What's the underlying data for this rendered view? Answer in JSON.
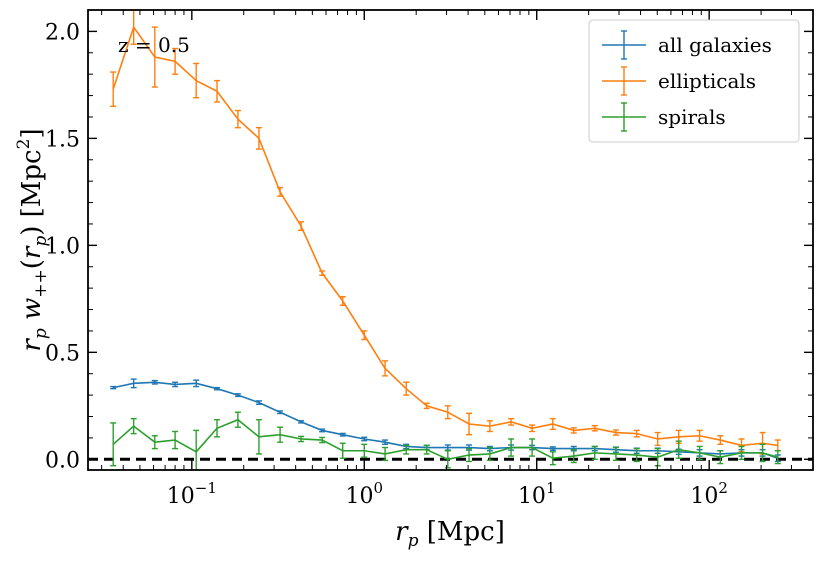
{
  "chart_data": {
    "type": "line",
    "xscale": "log",
    "xlim": [
      0.025,
      400
    ],
    "ylim": [
      -0.05,
      2.1
    ],
    "xlabel": "r_p [Mpc]",
    "ylabel": "r_p w_{++}(r_p) [Mpc^2]",
    "annotation": "z = 0.5",
    "legend_position": "upper right",
    "reference_line": {
      "y": 0,
      "style": "dashed",
      "color": "#000000"
    },
    "y_ticks": [
      {
        "value": 0.0,
        "label": "0.0"
      },
      {
        "value": 0.5,
        "label": "0.5"
      },
      {
        "value": 1.0,
        "label": "1.0"
      },
      {
        "value": 1.5,
        "label": "1.5"
      },
      {
        "value": 2.0,
        "label": "2.0"
      }
    ],
    "x_ticks": [
      {
        "value": 0.1,
        "base": "10",
        "exp": "−1"
      },
      {
        "value": 1,
        "base": "10",
        "exp": "0"
      },
      {
        "value": 10,
        "base": "10",
        "exp": "1"
      },
      {
        "value": 100,
        "base": "10",
        "exp": "2"
      }
    ],
    "x": [
      0.035,
      0.046,
      0.061,
      0.08,
      0.106,
      0.14,
      0.185,
      0.245,
      0.325,
      0.43,
      0.57,
      0.75,
      1.0,
      1.32,
      1.75,
      2.3,
      3.05,
      4.05,
      5.35,
      7.1,
      9.4,
      12.4,
      16.4,
      21.7,
      28.8,
      38.0,
      50.3,
      66.6,
      88.0,
      116.0,
      154.0,
      204.0,
      250.0
    ],
    "series": [
      {
        "name": "all galaxies",
        "color": "#1f77b4",
        "y": [
          0.335,
          0.355,
          0.36,
          0.35,
          0.355,
          0.33,
          0.3,
          0.265,
          0.22,
          0.175,
          0.135,
          0.115,
          0.095,
          0.08,
          0.06,
          0.055,
          0.055,
          0.055,
          0.05,
          0.055,
          0.055,
          0.05,
          0.05,
          0.05,
          0.045,
          0.04,
          0.04,
          0.035,
          0.03,
          0.025,
          0.03,
          0.03,
          0.005
        ],
        "yerr": [
          0.005,
          0.02,
          0.008,
          0.01,
          0.015,
          0.005,
          0.006,
          0.008,
          0.006,
          0.005,
          0.006,
          0.006,
          0.008,
          0.01,
          0.01,
          0.01,
          0.012,
          0.012,
          0.01,
          0.012,
          0.01,
          0.008,
          0.01,
          0.01,
          0.012,
          0.012,
          0.012,
          0.012,
          0.015,
          0.015,
          0.015,
          0.015,
          0.015
        ]
      },
      {
        "name": "ellipticals",
        "color": "#ff7f0e",
        "y": [
          1.73,
          2.02,
          1.88,
          1.86,
          1.77,
          1.72,
          1.59,
          1.5,
          1.25,
          1.09,
          0.87,
          0.74,
          0.58,
          0.425,
          0.33,
          0.25,
          0.22,
          0.165,
          0.155,
          0.175,
          0.145,
          0.165,
          0.135,
          0.145,
          0.125,
          0.12,
          0.095,
          0.105,
          0.11,
          0.09,
          0.065,
          0.075,
          0.065
        ],
        "yerr": [
          0.08,
          0.08,
          0.14,
          0.06,
          0.08,
          0.05,
          0.04,
          0.05,
          0.02,
          0.02,
          0.01,
          0.02,
          0.02,
          0.035,
          0.03,
          0.012,
          0.03,
          0.05,
          0.025,
          0.015,
          0.015,
          0.025,
          0.012,
          0.012,
          0.012,
          0.015,
          0.03,
          0.03,
          0.025,
          0.02,
          0.03,
          0.05,
          0.025
        ]
      },
      {
        "name": "spirals",
        "color": "#2ca02c",
        "y": [
          0.07,
          0.155,
          0.08,
          0.09,
          0.035,
          0.145,
          0.185,
          0.105,
          0.115,
          0.095,
          0.09,
          0.04,
          0.04,
          0.025,
          0.045,
          0.045,
          0.0,
          0.02,
          0.025,
          0.055,
          0.055,
          0.005,
          0.015,
          0.03,
          0.025,
          0.02,
          0.01,
          0.045,
          0.03,
          0.01,
          0.03,
          0.03,
          0.01
        ],
        "yerr": [
          0.1,
          0.035,
          0.03,
          0.04,
          0.1,
          0.04,
          0.035,
          0.08,
          0.035,
          0.012,
          0.012,
          0.035,
          0.03,
          0.03,
          0.02,
          0.02,
          0.04,
          0.03,
          0.03,
          0.04,
          0.04,
          0.03,
          0.03,
          0.03,
          0.03,
          0.03,
          0.04,
          0.04,
          0.03,
          0.03,
          0.03,
          0.04,
          0.03
        ]
      }
    ]
  }
}
